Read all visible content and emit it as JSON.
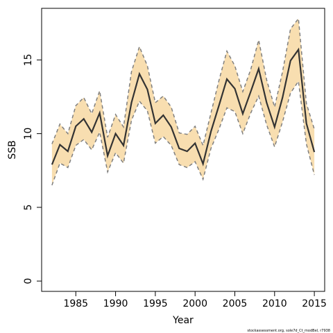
{
  "chart_data": {
    "type": "line",
    "xlabel": "Year",
    "ylabel": "SSB",
    "footnote": "stockassessment.org, sole7d_Ct_modBel, r7938",
    "x": [
      1982,
      1983,
      1984,
      1985,
      1986,
      1987,
      1988,
      1989,
      1990,
      1991,
      1992,
      1993,
      1994,
      1995,
      1996,
      1997,
      1998,
      1999,
      2000,
      2001,
      2002,
      2003,
      2004,
      2005,
      2006,
      2007,
      2008,
      2009,
      2010,
      2011,
      2012,
      2013,
      2014,
      2015
    ],
    "values": [
      7.9,
      9.25,
      8.8,
      10.5,
      11.0,
      10.1,
      11.4,
      8.5,
      10.0,
      9.2,
      12.1,
      14.05,
      13.0,
      10.7,
      11.25,
      10.45,
      9.0,
      8.8,
      9.35,
      7.95,
      10.15,
      11.9,
      13.7,
      13.05,
      11.35,
      12.85,
      14.4,
      12.1,
      10.45,
      12.45,
      14.95,
      15.7,
      10.7,
      8.75
    ],
    "upper": [
      9.3,
      10.65,
      10.0,
      11.9,
      12.45,
      11.35,
      12.9,
      9.75,
      11.3,
      10.45,
      14.2,
      15.9,
      14.6,
      12.1,
      12.55,
      11.8,
      10.05,
      9.95,
      10.5,
      9.2,
      11.4,
      13.6,
      15.6,
      14.6,
      12.85,
      14.35,
      16.35,
      13.65,
      11.8,
      14.2,
      17.1,
      17.8,
      12.05,
      10.3
    ],
    "lower": [
      6.5,
      8.0,
      7.7,
      9.2,
      9.6,
      8.9,
      10.1,
      7.4,
      8.7,
      8.0,
      10.9,
      12.2,
      11.55,
      9.35,
      9.8,
      9.2,
      7.9,
      7.7,
      8.1,
      6.9,
      9.0,
      10.3,
      11.75,
      11.5,
      10.0,
      11.4,
      12.55,
      10.6,
      9.1,
      10.8,
      12.75,
      13.55,
      9.3,
      7.2
    ],
    "color": "#333333",
    "band_color": "#f8deb0",
    "band_line_color": "#7f7f7f",
    "xlim": [
      1980.7,
      2016.3
    ],
    "ylim": [
      -0.7,
      18.5
    ],
    "xticks": [
      1985,
      1990,
      1995,
      2000,
      2005,
      2010,
      2015
    ],
    "yticks": [
      0,
      5,
      10,
      15
    ]
  }
}
